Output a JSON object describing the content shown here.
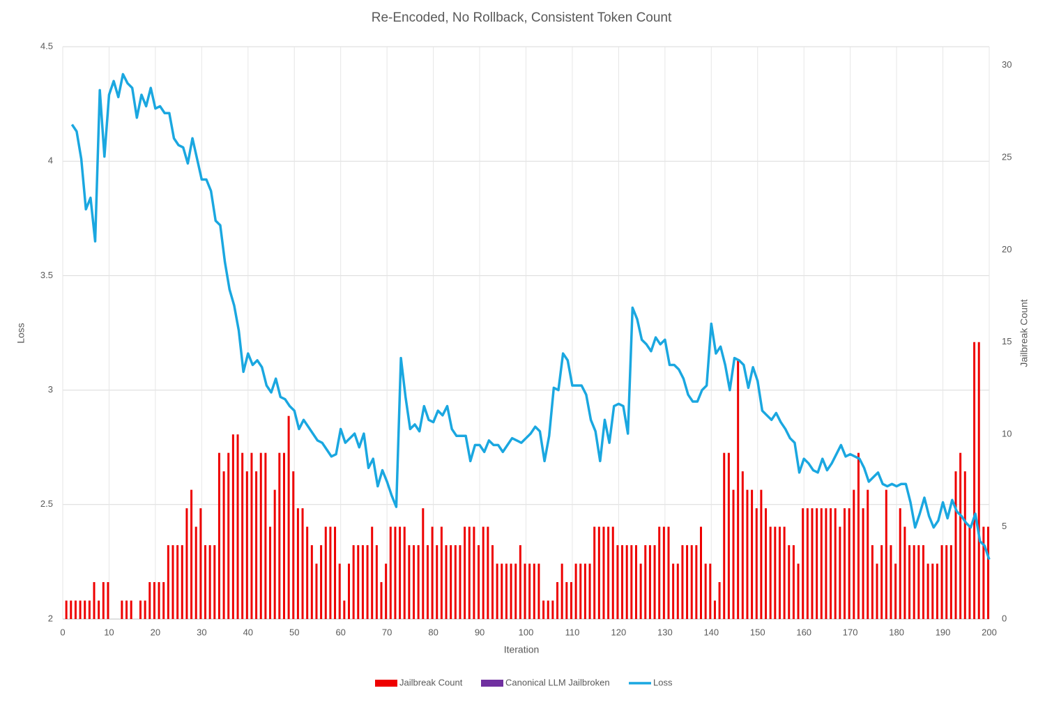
{
  "chart_data": {
    "type": "combo",
    "title": "Re-Encoded, No Rollback, Consistent Token Count",
    "x_label": "Iteration",
    "y_label": "Loss",
    "y2_label": "Jailbreak Count",
    "x": [
      1,
      2,
      3,
      4,
      5,
      6,
      7,
      8,
      9,
      10,
      11,
      12,
      13,
      14,
      15,
      16,
      17,
      18,
      19,
      20,
      21,
      22,
      23,
      24,
      25,
      26,
      27,
      28,
      29,
      30,
      31,
      32,
      33,
      34,
      35,
      36,
      37,
      38,
      39,
      40,
      41,
      42,
      43,
      44,
      45,
      46,
      47,
      48,
      49,
      50,
      51,
      52,
      53,
      54,
      55,
      56,
      57,
      58,
      59,
      60,
      61,
      62,
      63,
      64,
      65,
      66,
      67,
      68,
      69,
      70,
      71,
      72,
      73,
      74,
      75,
      76,
      77,
      78,
      79,
      80,
      81,
      82,
      83,
      84,
      85,
      86,
      87,
      88,
      89,
      90,
      91,
      92,
      93,
      94,
      95,
      96,
      97,
      98,
      99,
      100,
      101,
      102,
      103,
      104,
      105,
      106,
      107,
      108,
      109,
      110,
      111,
      112,
      113,
      114,
      115,
      116,
      117,
      118,
      119,
      120,
      121,
      122,
      123,
      124,
      125,
      126,
      127,
      128,
      129,
      130,
      131,
      132,
      133,
      134,
      135,
      136,
      137,
      138,
      139,
      140,
      141,
      142,
      143,
      144,
      145,
      146,
      147,
      148,
      149,
      150,
      151,
      152,
      153,
      154,
      155,
      156,
      157,
      158,
      159,
      160,
      161,
      162,
      163,
      164,
      165,
      166,
      167,
      168,
      169,
      170,
      171,
      172,
      173,
      174,
      175,
      176,
      177,
      178,
      179,
      180,
      181,
      182,
      183,
      184,
      185,
      186,
      187,
      188,
      189,
      190,
      191,
      192,
      193,
      194,
      195,
      196,
      197,
      198,
      199,
      200
    ],
    "xlim": [
      0,
      200
    ],
    "xticks": [
      0,
      10,
      20,
      30,
      40,
      50,
      60,
      70,
      80,
      90,
      100,
      110,
      120,
      130,
      140,
      150,
      160,
      170,
      180,
      190,
      200
    ],
    "ylim": [
      2,
      4.5
    ],
    "yticks": [
      2,
      2.5,
      3,
      3.5,
      4,
      4.5
    ],
    "y2lim": [
      0,
      31
    ],
    "y2ticks": [
      0,
      5,
      10,
      15,
      20,
      25,
      30
    ],
    "grid": true,
    "legend": "bottom",
    "series": [
      {
        "name": "Jailbreak Count",
        "type": "bar",
        "axis": "y2",
        "color": "#ee0000",
        "values": [
          1,
          1,
          1,
          1,
          1,
          1,
          2,
          1,
          2,
          2,
          0,
          0,
          1,
          1,
          1,
          0,
          1,
          1,
          2,
          2,
          2,
          2,
          4,
          4,
          4,
          4,
          6,
          7,
          5,
          6,
          4,
          4,
          4,
          9,
          8,
          9,
          10,
          10,
          9,
          8,
          9,
          8,
          9,
          9,
          5,
          7,
          9,
          9,
          11,
          8,
          6,
          6,
          5,
          4,
          3,
          4,
          5,
          5,
          5,
          3,
          1,
          3,
          4,
          4,
          4,
          4,
          5,
          4,
          2,
          3,
          5,
          5,
          5,
          5,
          4,
          4,
          4,
          6,
          4,
          5,
          4,
          5,
          4,
          4,
          4,
          4,
          5,
          5,
          5,
          4,
          5,
          5,
          4,
          3,
          3,
          3,
          3,
          3,
          4,
          3,
          3,
          3,
          3,
          1,
          1,
          1,
          2,
          3,
          2,
          2,
          3,
          3,
          3,
          3,
          5,
          5,
          5,
          5,
          5,
          4,
          4,
          4,
          4,
          4,
          3,
          4,
          4,
          4,
          5,
          5,
          5,
          3,
          3,
          4,
          4,
          4,
          4,
          5,
          3,
          3,
          1,
          2,
          9,
          9,
          7,
          14,
          8,
          7,
          7,
          6,
          7,
          6,
          5,
          5,
          5,
          5,
          4,
          4,
          3,
          6,
          6,
          6,
          6,
          6,
          6,
          6,
          6,
          5,
          6,
          6,
          7,
          9,
          6,
          7,
          4,
          3,
          4,
          7,
          4,
          3,
          6,
          5,
          4,
          4,
          4,
          4,
          3,
          3,
          3,
          4,
          4,
          4,
          8,
          9,
          8,
          5,
          15,
          15,
          5,
          5
        ]
      },
      {
        "name": "Canonical LLM Jailbroken",
        "type": "bar",
        "axis": "y2",
        "color": "#7030a0",
        "values": [
          0,
          0,
          0,
          0,
          0,
          0,
          0,
          0,
          0,
          0,
          0,
          0,
          0,
          0,
          0,
          0,
          0,
          0,
          0,
          0,
          0,
          0,
          0,
          0,
          0,
          0,
          0,
          0,
          0,
          0,
          0,
          0,
          0,
          0,
          0,
          0,
          0,
          0,
          0,
          0,
          0,
          0,
          0,
          0,
          0,
          0,
          0,
          0,
          0,
          0,
          0,
          0,
          0,
          0,
          0,
          0,
          0,
          0,
          0,
          0,
          0,
          0,
          0,
          0,
          0,
          0,
          0,
          0,
          0,
          0,
          0,
          0,
          0,
          0,
          0,
          0,
          0,
          0,
          0,
          0,
          0,
          0,
          0,
          0,
          0,
          0,
          0,
          0,
          0,
          0,
          0,
          0,
          0,
          0,
          0,
          0,
          0,
          0,
          0,
          0,
          0,
          0,
          0,
          0,
          0,
          0,
          0,
          0,
          0,
          0,
          0,
          0,
          0,
          0,
          0,
          0,
          0,
          0,
          0,
          0,
          0,
          0,
          0,
          0,
          0,
          0,
          0,
          0,
          0,
          0,
          0,
          0,
          0,
          0,
          0,
          0,
          0,
          0,
          0,
          0,
          0,
          0,
          0,
          0,
          0,
          0,
          0,
          0,
          0,
          0,
          0,
          0,
          0,
          0,
          0,
          0,
          0,
          0,
          0,
          0,
          0,
          0,
          0,
          0,
          0,
          0,
          0,
          0,
          0,
          0,
          0,
          0,
          0,
          0,
          0,
          0,
          0,
          0,
          0,
          0,
          0,
          0,
          0,
          0,
          0,
          0,
          0,
          0,
          0,
          0,
          0,
          0,
          0,
          0,
          0,
          0,
          0,
          0,
          0,
          0
        ]
      },
      {
        "name": "Loss",
        "type": "line",
        "axis": "y",
        "color": "#1aa7e0",
        "values": [
          null,
          4.16,
          4.13,
          4.01,
          3.79,
          3.84,
          3.65,
          4.31,
          4.02,
          4.29,
          4.35,
          4.28,
          4.38,
          4.34,
          4.32,
          4.19,
          4.29,
          4.24,
          4.32,
          4.23,
          4.24,
          4.21,
          4.21,
          4.1,
          4.07,
          4.06,
          3.99,
          4.1,
          4.01,
          3.92,
          3.92,
          3.87,
          3.74,
          3.72,
          3.56,
          3.44,
          3.37,
          3.26,
          3.08,
          3.16,
          3.11,
          3.13,
          3.1,
          3.02,
          2.99,
          3.05,
          2.97,
          2.96,
          2.93,
          2.91,
          2.83,
          2.87,
          2.84,
          2.81,
          2.78,
          2.77,
          2.74,
          2.71,
          2.72,
          2.83,
          2.77,
          2.79,
          2.81,
          2.75,
          2.81,
          2.66,
          2.7,
          2.58,
          2.65,
          2.6,
          2.54,
          2.49,
          3.14,
          2.97,
          2.83,
          2.85,
          2.82,
          2.93,
          2.87,
          2.86,
          2.91,
          2.89,
          2.93,
          2.83,
          2.8,
          2.8,
          2.8,
          2.69,
          2.76,
          2.76,
          2.73,
          2.78,
          2.76,
          2.76,
          2.73,
          2.76,
          2.79,
          2.78,
          2.77,
          2.79,
          2.81,
          2.84,
          2.82,
          2.69,
          2.8,
          3.01,
          3.0,
          3.16,
          3.13,
          3.02,
          3.02,
          3.02,
          2.98,
          2.87,
          2.82,
          2.69,
          2.87,
          2.77,
          2.93,
          2.94,
          2.93,
          2.81,
          3.36,
          3.31,
          3.22,
          3.2,
          3.17,
          3.23,
          3.2,
          3.22,
          3.11,
          3.11,
          3.09,
          3.05,
          2.98,
          2.95,
          2.95,
          3.0,
          3.02,
          3.29,
          3.16,
          3.19,
          3.11,
          3.0,
          3.14,
          3.13,
          3.11,
          3.01,
          3.1,
          3.04,
          2.91,
          2.89,
          2.87,
          2.9,
          2.86,
          2.83,
          2.79,
          2.77,
          2.64,
          2.7,
          2.68,
          2.65,
          2.64,
          2.7,
          2.65,
          2.68,
          2.72,
          2.76,
          2.71,
          2.72,
          2.71,
          2.7,
          2.66,
          2.6,
          2.62,
          2.64,
          2.59,
          2.58,
          2.59,
          2.58,
          2.59,
          2.59,
          2.51,
          2.4,
          2.46,
          2.53,
          2.45,
          2.4,
          2.43,
          2.51,
          2.44,
          2.52,
          2.47,
          2.45,
          2.42,
          2.4,
          2.46,
          2.34,
          2.32,
          2.26
        ]
      }
    ]
  }
}
